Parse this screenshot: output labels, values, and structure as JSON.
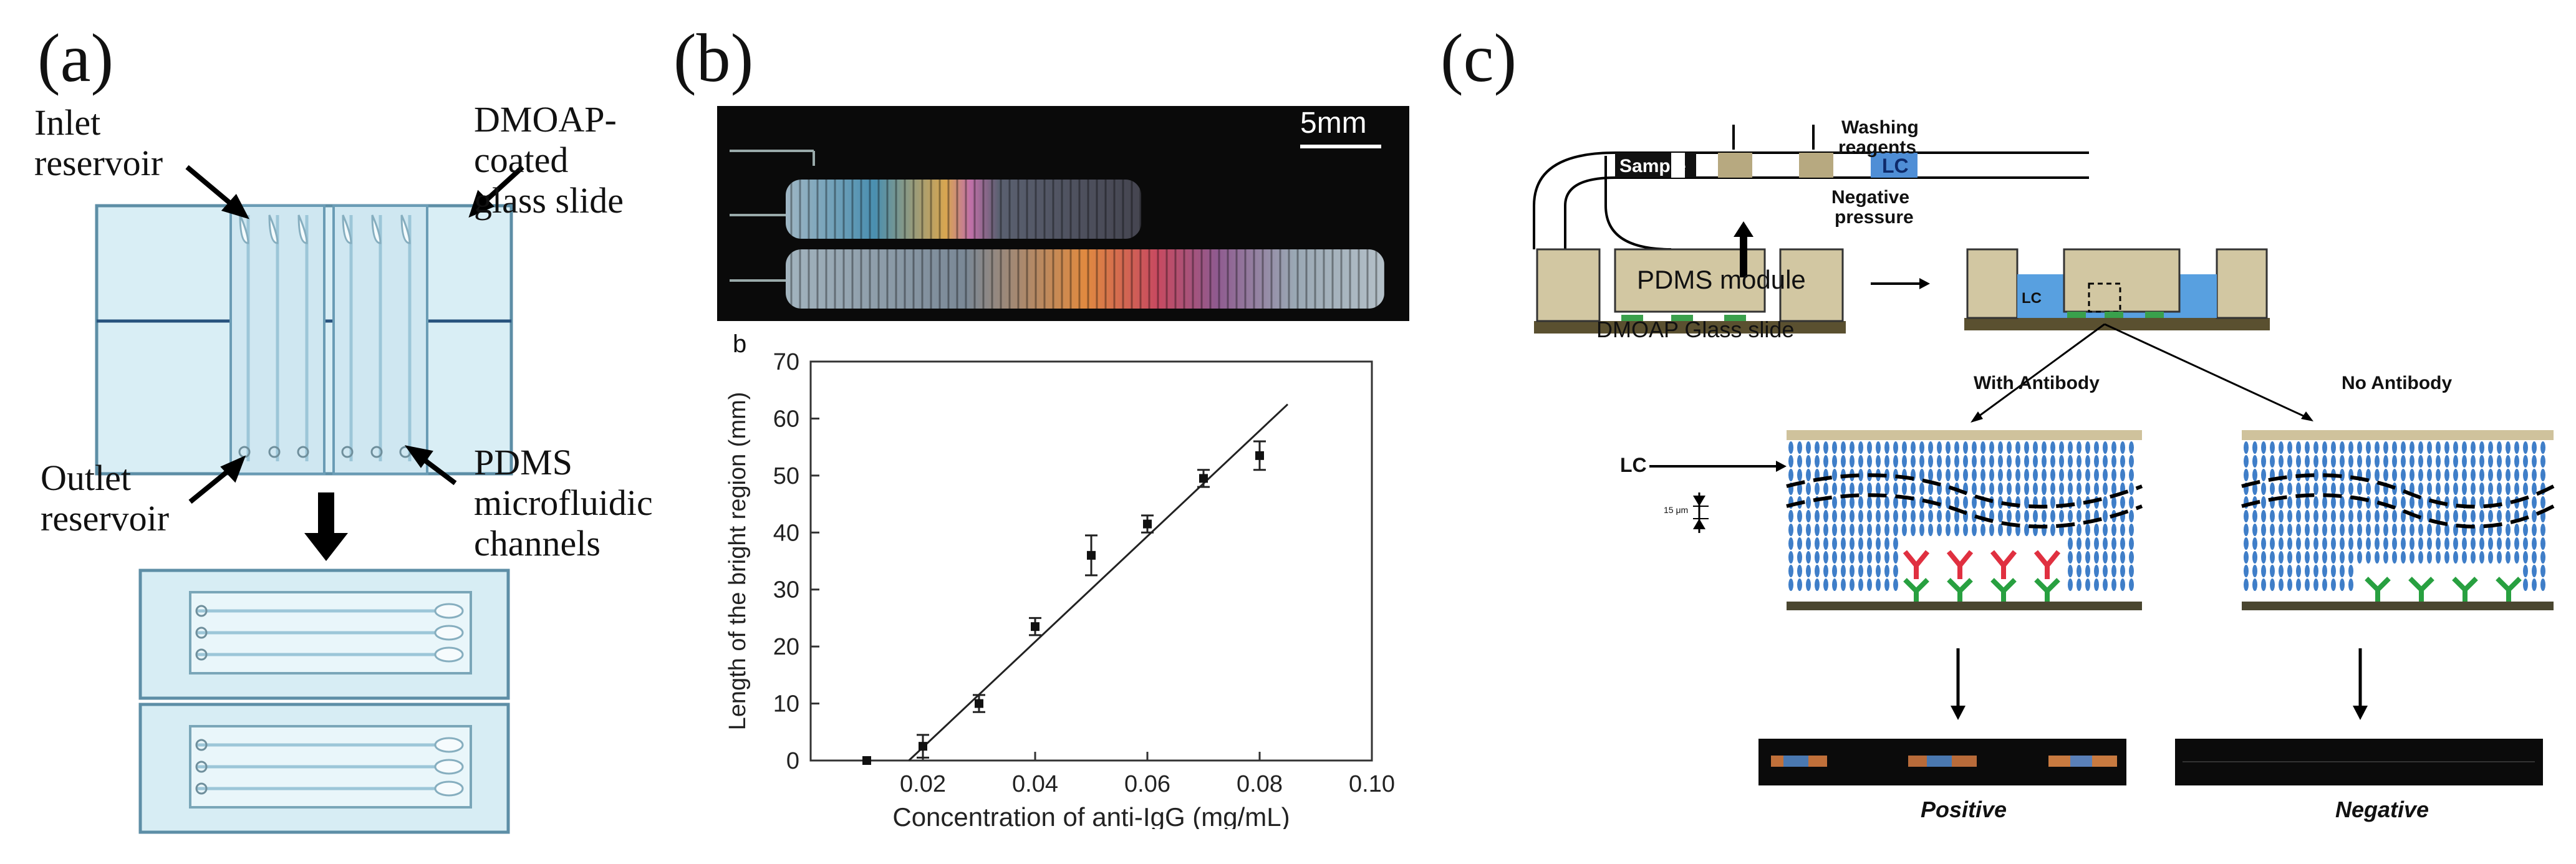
{
  "panels": [
    {
      "id": "a",
      "label": "(a)",
      "labels": {
        "inlet_1": "Inlet",
        "inlet_2": "reservoir",
        "dmoap_1": "DMOAP-",
        "dmoap_2": "coated",
        "dmoap_3": "glass slide",
        "outlet_1": "Outlet",
        "outlet_2": "reservoir",
        "pdms_1": "PDMS",
        "pdms_2": "microfluidic",
        "pdms_3": "channels"
      }
    },
    {
      "id": "b",
      "label": "(b)",
      "scale_bar": "5mm",
      "sub_label": "b"
    },
    {
      "id": "c",
      "label": "(c)",
      "labels": {
        "washing_1": "Washing",
        "washing_2": "reagents",
        "sample": "Sample",
        "lc_channel": "LC",
        "negative_1": "Negative",
        "negative_2": "pressure",
        "pdms_module": "PDMS  module",
        "glass_slide": "DMOAP Glass slide",
        "lc_right": "LC",
        "with_antibody": "With Antibody",
        "no_antibody": "No Antibody",
        "lc_detail": "LC",
        "thickness": "15 μm",
        "positive": "Positive",
        "negative": "Negative"
      }
    }
  ],
  "chart_data": {
    "type": "scatter",
    "xlabel": "Concentration of anti-IgG (mg/mL)",
    "ylabel": "Length of the bright region (mm)",
    "xlim": [
      0,
      0.1
    ],
    "ylim": [
      0,
      70
    ],
    "x_ticks": [
      "0.02",
      "0.04",
      "0.06",
      "0.08",
      "0.10"
    ],
    "y_ticks": [
      "0",
      "10",
      "20",
      "30",
      "40",
      "50",
      "60",
      "70"
    ],
    "points": [
      {
        "x": 0.01,
        "y": 0,
        "err": 0
      },
      {
        "x": 0.02,
        "y": 2.5,
        "err": 2
      },
      {
        "x": 0.03,
        "y": 10,
        "err": 1.5
      },
      {
        "x": 0.04,
        "y": 23.5,
        "err": 1.5
      },
      {
        "x": 0.05,
        "y": 36,
        "err": 3.5
      },
      {
        "x": 0.06,
        "y": 41.5,
        "err": 1.5
      },
      {
        "x": 0.07,
        "y": 49.5,
        "err": 1.5
      },
      {
        "x": 0.08,
        "y": 53.5,
        "err": 2.5
      }
    ],
    "fit_line": {
      "x": [
        0.0175,
        0.085
      ],
      "y": [
        0,
        62.5
      ]
    },
    "grid": false,
    "legend": "none"
  }
}
